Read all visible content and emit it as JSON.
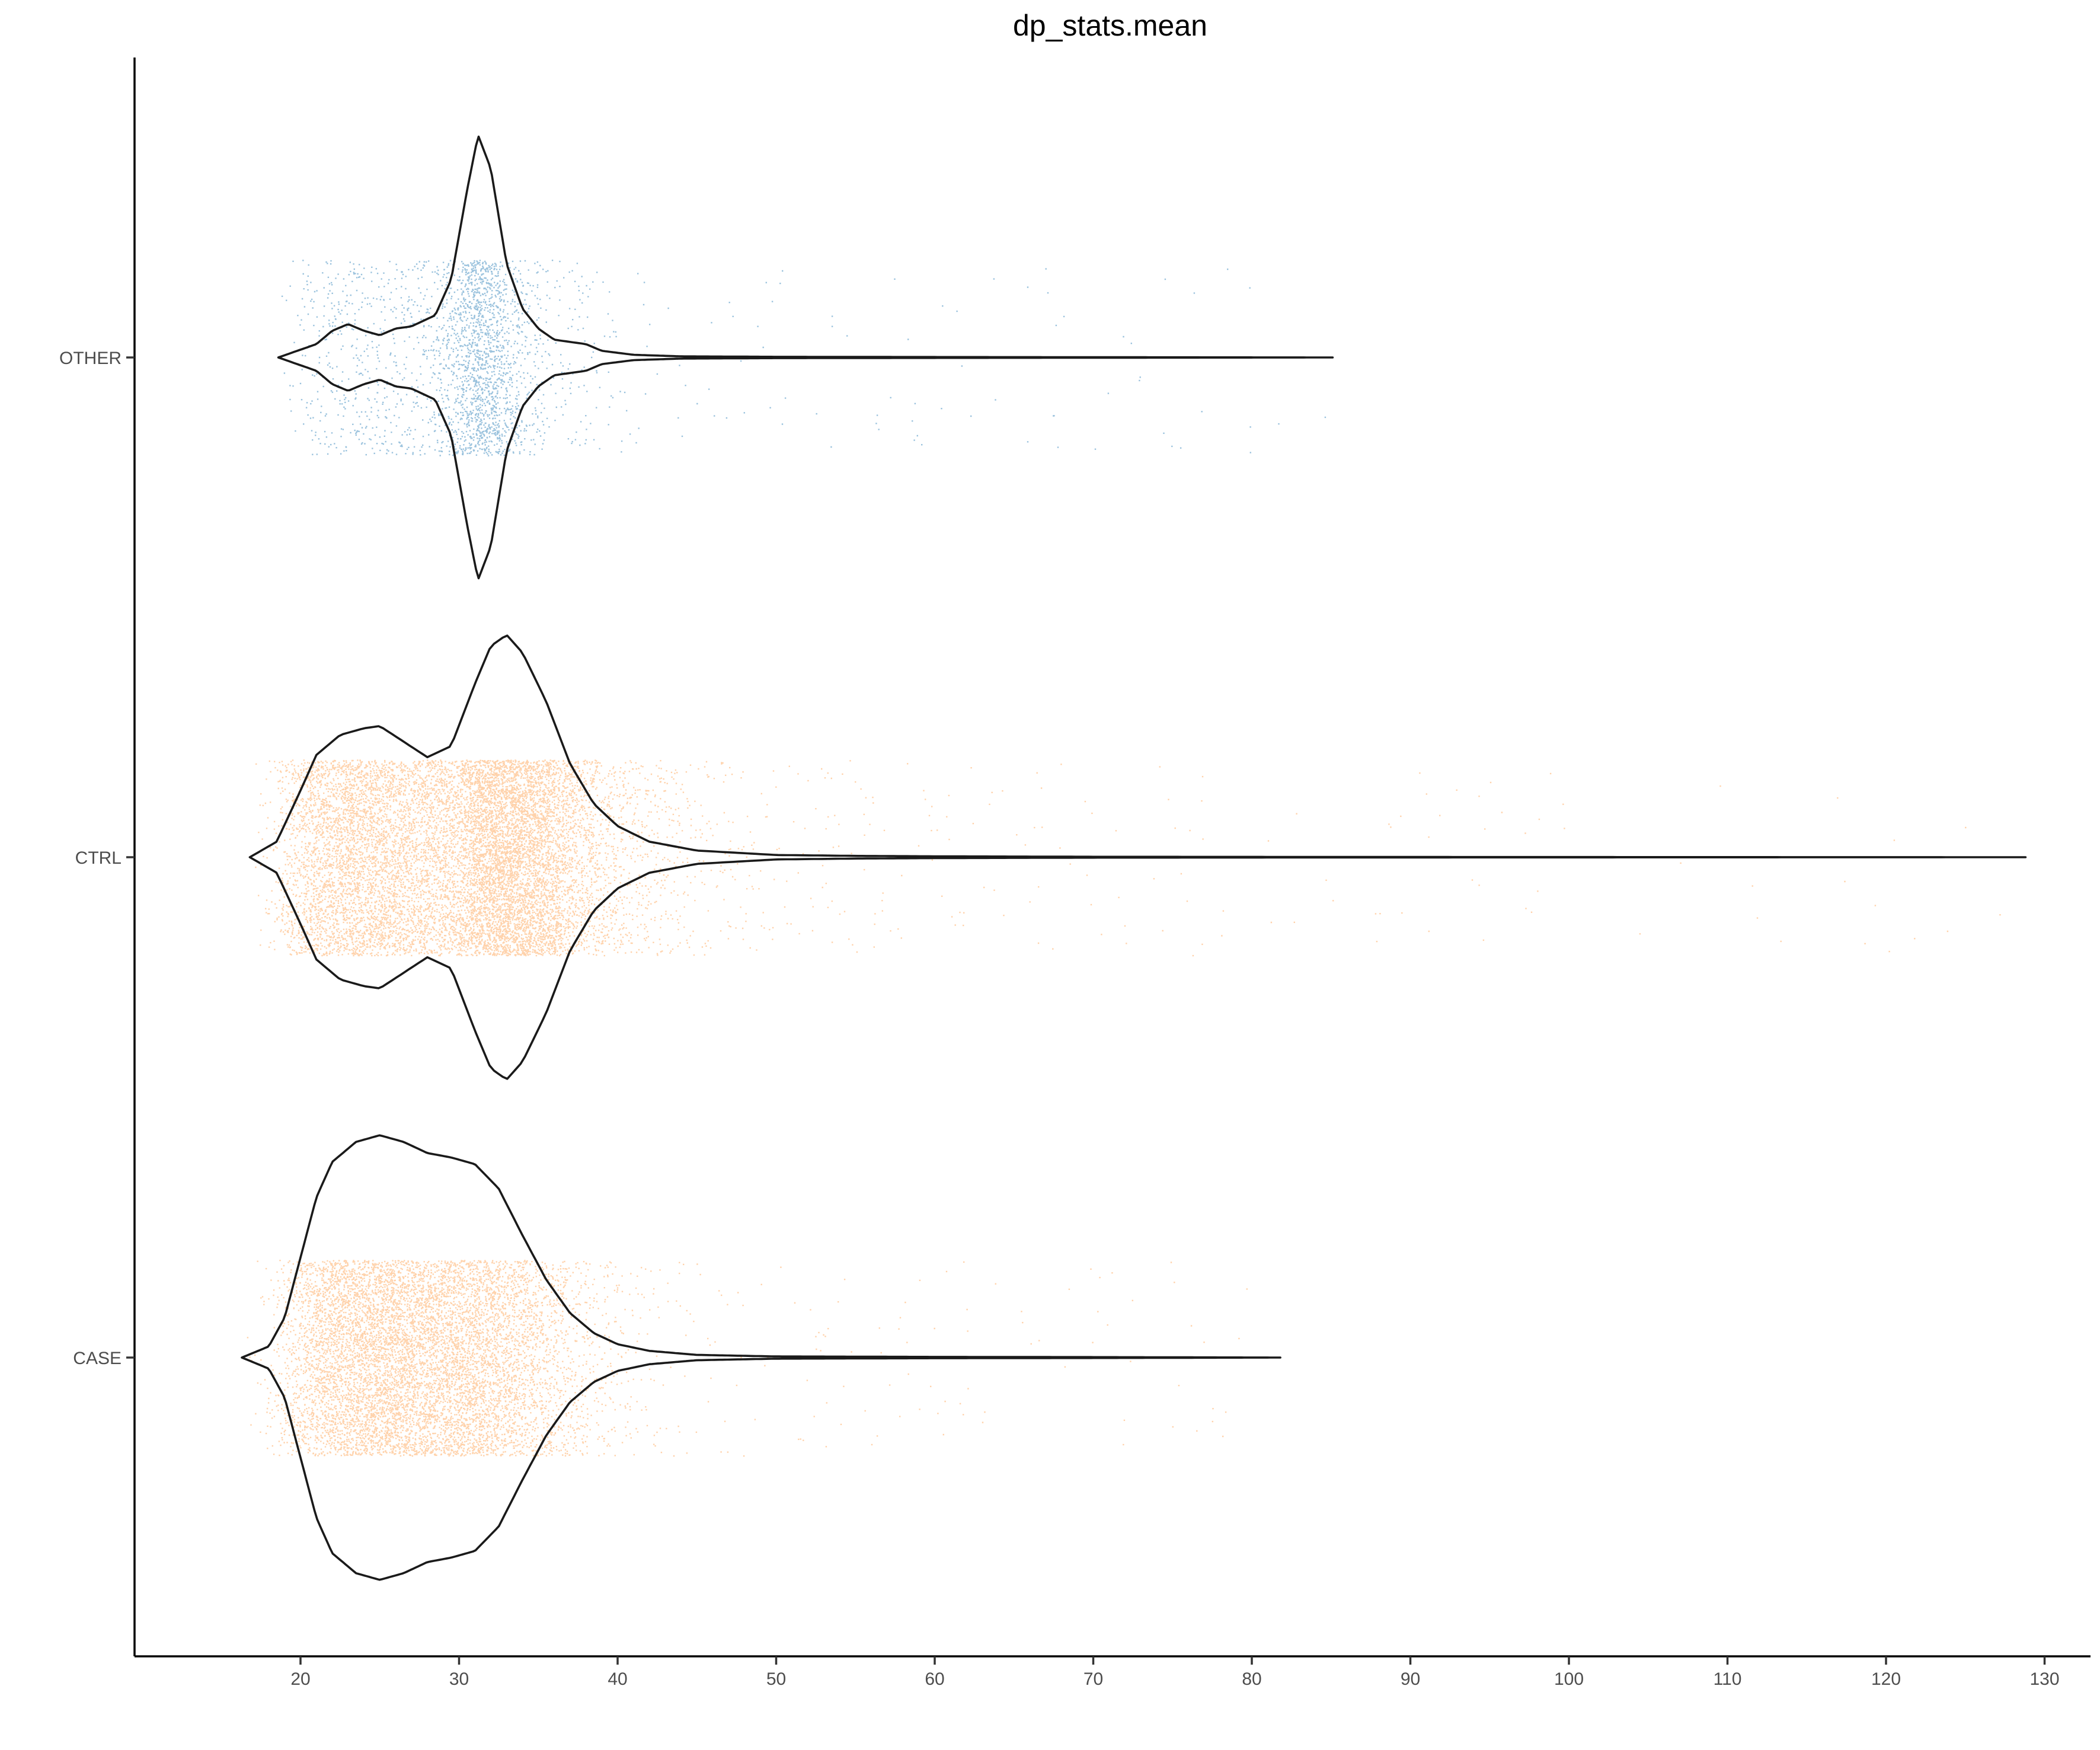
{
  "chart_data": {
    "type": "violin",
    "orientation": "horizontal",
    "title": "dp_stats.mean",
    "xlabel": "",
    "ylabel": "",
    "xlim": [
      11,
      134
    ],
    "x_ticks": [
      20,
      30,
      40,
      50,
      60,
      70,
      80,
      90,
      100,
      110,
      120,
      130
    ],
    "grid": false,
    "legend": "none",
    "categories": [
      "CASE",
      "CTRL",
      "OTHER"
    ],
    "colors": {
      "CASE": "#ff7f0e",
      "CTRL": "#ff7f0e",
      "OTHER": "#1f77b4",
      "outline": "#1a1a1a"
    },
    "series": [
      {
        "category": "CASE",
        "point_color": "#ff7f0e",
        "n_points_approx": 9000,
        "min": 16.3,
        "max": 81.8,
        "density_profile": [
          [
            16.3,
            0.0
          ],
          [
            18.0,
            0.05
          ],
          [
            19.0,
            0.18
          ],
          [
            20.0,
            0.45
          ],
          [
            21.0,
            0.72
          ],
          [
            22.0,
            0.88
          ],
          [
            23.5,
            0.97
          ],
          [
            25.0,
            1.0
          ],
          [
            26.5,
            0.97
          ],
          [
            28.0,
            0.92
          ],
          [
            29.5,
            0.9
          ],
          [
            31.0,
            0.87
          ],
          [
            32.5,
            0.76
          ],
          [
            34.0,
            0.55
          ],
          [
            35.5,
            0.35
          ],
          [
            37.0,
            0.2
          ],
          [
            38.5,
            0.11
          ],
          [
            40.0,
            0.06
          ],
          [
            42.0,
            0.03
          ],
          [
            45.0,
            0.012
          ],
          [
            50.0,
            0.005
          ],
          [
            60.0,
            0.003
          ],
          [
            70.0,
            0.002
          ],
          [
            81.8,
            0.0
          ]
        ]
      },
      {
        "category": "CTRL",
        "point_color": "#ff7f0e",
        "n_points_approx": 30000,
        "min": 16.8,
        "max": 128.8,
        "density_profile": [
          [
            16.8,
            0.0
          ],
          [
            18.5,
            0.07
          ],
          [
            20.0,
            0.3
          ],
          [
            21.0,
            0.46
          ],
          [
            22.5,
            0.55
          ],
          [
            24.0,
            0.58
          ],
          [
            25.0,
            0.59
          ],
          [
            26.5,
            0.52
          ],
          [
            28.0,
            0.45
          ],
          [
            29.5,
            0.5
          ],
          [
            31.0,
            0.78
          ],
          [
            32.0,
            0.95
          ],
          [
            33.0,
            1.0
          ],
          [
            34.0,
            0.92
          ],
          [
            35.5,
            0.7
          ],
          [
            37.0,
            0.42
          ],
          [
            38.5,
            0.24
          ],
          [
            40.0,
            0.14
          ],
          [
            42.0,
            0.07
          ],
          [
            45.0,
            0.03
          ],
          [
            50.0,
            0.01
          ],
          [
            55.0,
            0.006
          ],
          [
            60.0,
            0.004
          ],
          [
            70.0,
            0.002
          ],
          [
            90.0,
            0.001
          ],
          [
            128.8,
            0.0
          ]
        ]
      },
      {
        "category": "OTHER",
        "point_color": "#1f77b4",
        "n_points_approx": 2500,
        "min": 18.6,
        "max": 85.1,
        "density_profile": [
          [
            18.6,
            0.0
          ],
          [
            19.8,
            0.03
          ],
          [
            21.0,
            0.06
          ],
          [
            22.0,
            0.12
          ],
          [
            23.0,
            0.15
          ],
          [
            24.0,
            0.12
          ],
          [
            25.0,
            0.1
          ],
          [
            26.0,
            0.13
          ],
          [
            27.0,
            0.14
          ],
          [
            28.5,
            0.19
          ],
          [
            29.5,
            0.35
          ],
          [
            30.5,
            0.75
          ],
          [
            31.2,
            1.0
          ],
          [
            32.0,
            0.85
          ],
          [
            33.0,
            0.42
          ],
          [
            34.0,
            0.22
          ],
          [
            35.0,
            0.13
          ],
          [
            36.0,
            0.08
          ],
          [
            37.0,
            0.07
          ],
          [
            38.0,
            0.06
          ],
          [
            39.0,
            0.03
          ],
          [
            41.0,
            0.012
          ],
          [
            44.0,
            0.005
          ],
          [
            50.0,
            0.003
          ],
          [
            60.0,
            0.002
          ],
          [
            85.1,
            0.0
          ]
        ]
      }
    ]
  }
}
